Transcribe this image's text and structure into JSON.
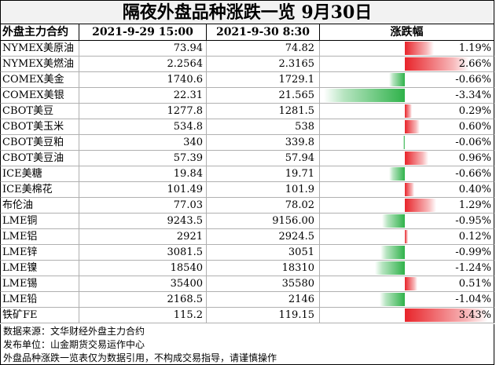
{
  "title": "隔夜外盘品种涨跌一览 9月30日",
  "headers": {
    "name": "外盘主力合约",
    "prev": "2021-9-29 15:00",
    "cur": "2021-9-30 8:30",
    "change": "涨跌幅"
  },
  "rows": [
    {
      "name": "NYMEX美原油",
      "prev": "73.94",
      "cur": "74.82",
      "pct": "1.19%",
      "value": 1.19
    },
    {
      "name": "NYMEX美燃油",
      "prev": "2.2564",
      "cur": "2.3165",
      "pct": "2.66%",
      "value": 2.66
    },
    {
      "name": "COMEX美金",
      "prev": "1740.6",
      "cur": "1729.1",
      "pct": "-0.66%",
      "value": -0.66
    },
    {
      "name": "COMEX美银",
      "prev": "22.31",
      "cur": "21.565",
      "pct": "-3.34%",
      "value": -3.34
    },
    {
      "name": "CBOT美豆",
      "prev": "1277.8",
      "cur": "1281.5",
      "pct": "0.29%",
      "value": 0.29
    },
    {
      "name": "CBOT美玉米",
      "prev": "534.8",
      "cur": "538",
      "pct": "0.60%",
      "value": 0.6
    },
    {
      "name": "CBOT美豆粕",
      "prev": "340",
      "cur": "339.8",
      "pct": "-0.06%",
      "value": -0.06
    },
    {
      "name": "CBOT美豆油",
      "prev": "57.39",
      "cur": "57.94",
      "pct": "0.96%",
      "value": 0.96
    },
    {
      "name": "ICE美糖",
      "prev": "19.84",
      "cur": "19.71",
      "pct": "-0.66%",
      "value": -0.66
    },
    {
      "name": "ICE美棉花",
      "prev": "101.49",
      "cur": "101.9",
      "pct": "0.40%",
      "value": 0.4
    },
    {
      "name": "布伦油",
      "prev": "77.03",
      "cur": "78.02",
      "pct": "1.29%",
      "value": 1.29
    },
    {
      "name": "LME铜",
      "prev": "9243.5",
      "cur": "9156.00",
      "pct": "-0.95%",
      "value": -0.95
    },
    {
      "name": "LME铝",
      "prev": "2921",
      "cur": "2924.5",
      "pct": "0.12%",
      "value": 0.12
    },
    {
      "name": "LME锌",
      "prev": "3081.5",
      "cur": "3051",
      "pct": "-0.99%",
      "value": -0.99
    },
    {
      "name": "LME镍",
      "prev": "18540",
      "cur": "18310",
      "pct": "-1.24%",
      "value": -1.24
    },
    {
      "name": "LME锡",
      "prev": "35400",
      "cur": "35580",
      "pct": "0.51%",
      "value": 0.51
    },
    {
      "name": "LME铅",
      "prev": "2168.5",
      "cur": "2146",
      "pct": "-1.04%",
      "value": -1.04
    },
    {
      "name": "铁矿FE",
      "prev": "115.2",
      "cur": "119.15",
      "pct": "3.43%",
      "value": 3.43
    }
  ],
  "notes": [
    "数据来源：文华财经外盘主力合约",
    "发布单位：山金期货交易运作中心",
    "外盘品种涨跌一览表仅为数据引用，不构成交易指导，请谨慎操作"
  ],
  "colors": {
    "up": "#e8242a",
    "down": "#2fb24a"
  }
}
